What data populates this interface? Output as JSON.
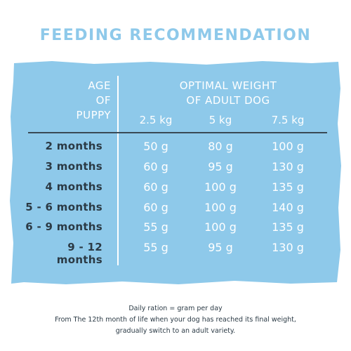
{
  "title": "FEEDING RECOMMENDATION",
  "colors": {
    "title": "#8ec9ea",
    "panel": "#8ec9ea",
    "age_text": "#2b3a45",
    "value_text": "#ffffff"
  },
  "table": {
    "age_header": [
      "AGE",
      "OF",
      "PUPPY"
    ],
    "weight_header": [
      "OPTIMAL WEIGHT",
      "OF ADULT DOG"
    ],
    "weights": [
      "2.5 kg",
      "5 kg",
      "7.5 kg"
    ],
    "rows": [
      {
        "age": "2 months",
        "values": [
          "50 g",
          "80 g",
          "100 g"
        ]
      },
      {
        "age": "3 months",
        "values": [
          "60 g",
          "95 g",
          "130 g"
        ]
      },
      {
        "age": "4 months",
        "values": [
          "60 g",
          "100 g",
          "135 g"
        ]
      },
      {
        "age": "5 - 6 months",
        "values": [
          "60 g",
          "100 g",
          "140 g"
        ]
      },
      {
        "age": "6 - 9 months",
        "values": [
          "55 g",
          "100 g",
          "135 g"
        ]
      },
      {
        "age": "9 - 12 months",
        "values": [
          "55 g",
          "95 g",
          "130 g"
        ]
      }
    ]
  },
  "footer": [
    "Daily ration = gram per day",
    "From The 12th month of life when your dog has reached its final weight,",
    "gradually switch to an adult variety."
  ]
}
